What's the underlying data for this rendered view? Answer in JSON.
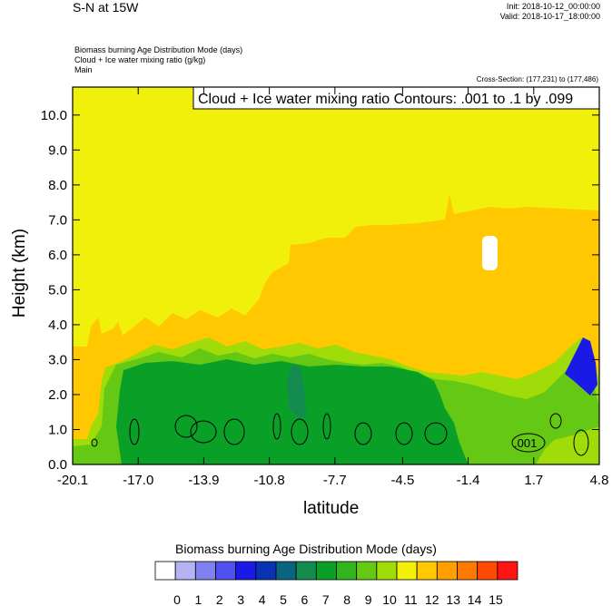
{
  "header": {
    "title": "S-N at 15W",
    "init": "Init: 2018-10-12_00:00:00",
    "valid": "Valid: 2018-10-17_18:00:00",
    "fields": [
      "Biomass burning Age Distribution Mode   (days)",
      "Cloud + Ice water mixing ratio   (g/kg)",
      "Main"
    ],
    "cross_section": "Cross-Section: (177,231) to (177,486)"
  },
  "chart_data": {
    "type": "heatmap",
    "contour_label": "Cloud + Ice water mixing ratio Contours: .001 to .1 by .099",
    "contour_value_label": ".001",
    "xlabel": "latitude",
    "ylabel": "Height (km)",
    "xlim": [
      -20.1,
      4.8
    ],
    "ylim": [
      0.0,
      10.8
    ],
    "x_ticks": [
      "-20.1",
      "-17.0",
      "-13.9",
      "-10.8",
      "-7.7",
      "-4.5",
      "-1.4",
      "1.7",
      "4.8"
    ],
    "x_tick_values": [
      -20.1,
      -17.0,
      -13.9,
      -10.8,
      -7.7,
      -4.5,
      -1.4,
      1.7,
      4.8
    ],
    "y_ticks": [
      "0.0",
      "1.0",
      "2.0",
      "3.0",
      "4.0",
      "5.0",
      "6.0",
      "7.0",
      "8.0",
      "9.0",
      "10.0"
    ],
    "y_tick_values": [
      0,
      1,
      2,
      3,
      4,
      5,
      6,
      7,
      8,
      9,
      10
    ],
    "colorbar": {
      "title": "Biomass burning Age Distribution Mode  (days)",
      "labels": [
        "0",
        "1",
        "2",
        "3",
        "4",
        "5",
        "6",
        "7",
        "8",
        "9",
        "10",
        "11",
        "12",
        "13",
        "14",
        "15"
      ],
      "colors": [
        "#ffffff",
        "#b4b4f5",
        "#8080ee",
        "#5050ee",
        "#1a1ae6",
        "#0a32b4",
        "#0a6480",
        "#148c50",
        "#0aa028",
        "#32b41e",
        "#64c814",
        "#a0dc0a",
        "#f0f00a",
        "#ffc800",
        "#ffa000",
        "#ff7800",
        "#ff4a00",
        "#ff1414"
      ]
    },
    "regions": [
      {
        "label": "age 12",
        "color": "#f0f00a"
      },
      {
        "label": "age 13",
        "color": "#ffc800"
      },
      {
        "label": "age 11",
        "color": "#a0dc0a"
      },
      {
        "label": "age 10",
        "color": "#64c814"
      },
      {
        "label": "age 8",
        "color": "#0aa028"
      },
      {
        "label": "age 7",
        "color": "#148c50"
      },
      {
        "label": "age 4",
        "color": "#1a1ae6"
      },
      {
        "label": "age 0",
        "color": "#ffffff"
      }
    ]
  }
}
